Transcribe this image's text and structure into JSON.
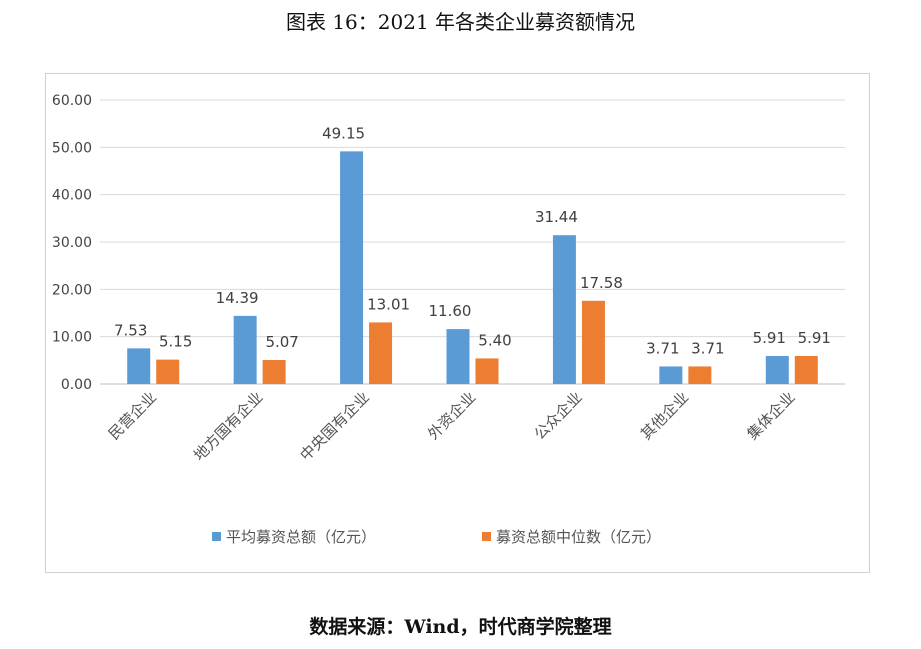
{
  "title": "图表 16：2021 年各类企业募资额情况",
  "source": "数据来源：Wind，时代商学院整理",
  "chart_data": {
    "type": "bar",
    "title": "",
    "categories": [
      "民营企业",
      "地方国有企业",
      "中央国有企业",
      "外资企业",
      "公众企业",
      "其他企业",
      "集体企业"
    ],
    "series": [
      {
        "name": "平均募资总额（亿元）",
        "color": "#5b9bd5",
        "values": [
          7.53,
          14.39,
          49.15,
          11.6,
          31.44,
          3.71,
          5.91
        ]
      },
      {
        "name": "募资总额中位数（亿元）",
        "color": "#ed7d31",
        "values": [
          5.15,
          5.07,
          13.01,
          5.4,
          17.58,
          3.71,
          5.91
        ]
      }
    ],
    "ylim": [
      0,
      60
    ],
    "yticks": [
      "0.00",
      "10.00",
      "20.00",
      "30.00",
      "40.00",
      "50.00",
      "60.00"
    ],
    "grid": true,
    "legend_position": "bottom",
    "data_labels": true
  }
}
